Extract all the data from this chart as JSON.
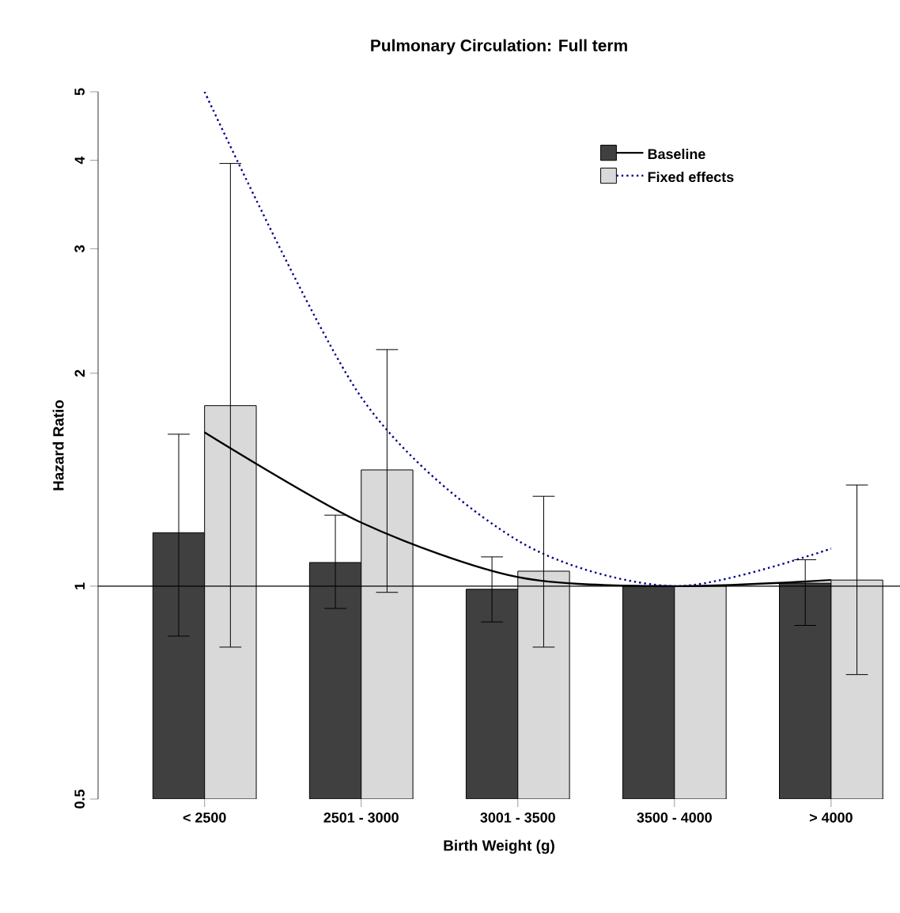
{
  "chart_data": {
    "type": "bar",
    "title": "Pulmonary Circulation: Full term",
    "xlabel": "Birth Weight (g)",
    "ylabel": "Hazard Ratio",
    "categories": [
      "< 2500",
      "2501 - 3000",
      "3001 - 3500",
      "3500 - 4000",
      "> 4000"
    ],
    "series": [
      {
        "name": "Baseline",
        "color": "#404040",
        "values": [
          1.19,
          1.08,
          0.99,
          1.0,
          1.01
        ],
        "errors": [
          [
            0.85,
            1.64
          ],
          [
            0.93,
            1.26
          ],
          [
            0.89,
            1.1
          ],
          null,
          [
            0.88,
            1.09
          ]
        ]
      },
      {
        "name": "Fixed effects",
        "color": "#d9d9d9",
        "values": [
          1.8,
          1.46,
          1.05,
          1.0,
          1.02
        ],
        "errors": [
          [
            0.82,
            3.96
          ],
          [
            0.98,
            2.16
          ],
          [
            0.82,
            1.34
          ],
          null,
          [
            0.75,
            1.39
          ]
        ]
      },
      {
        "type": "line",
        "color": "#000000",
        "line_style": "solid",
        "values": [
          1.65,
          1.23,
          1.03,
          1.0,
          1.02
        ]
      },
      {
        "type": "line",
        "color": "#00008b",
        "line_style": "dotted",
        "values": [
          5.0,
          1.85,
          1.16,
          1.0,
          1.13
        ]
      }
    ],
    "ref_lines": [
      {
        "axis": "y",
        "value": 1,
        "color": "#000000"
      }
    ],
    "log": "y",
    "ylim": [
      0.5,
      5
    ],
    "yticks": [
      0.5,
      1,
      2,
      3,
      4,
      5
    ],
    "grid": false,
    "legend": "top right"
  }
}
